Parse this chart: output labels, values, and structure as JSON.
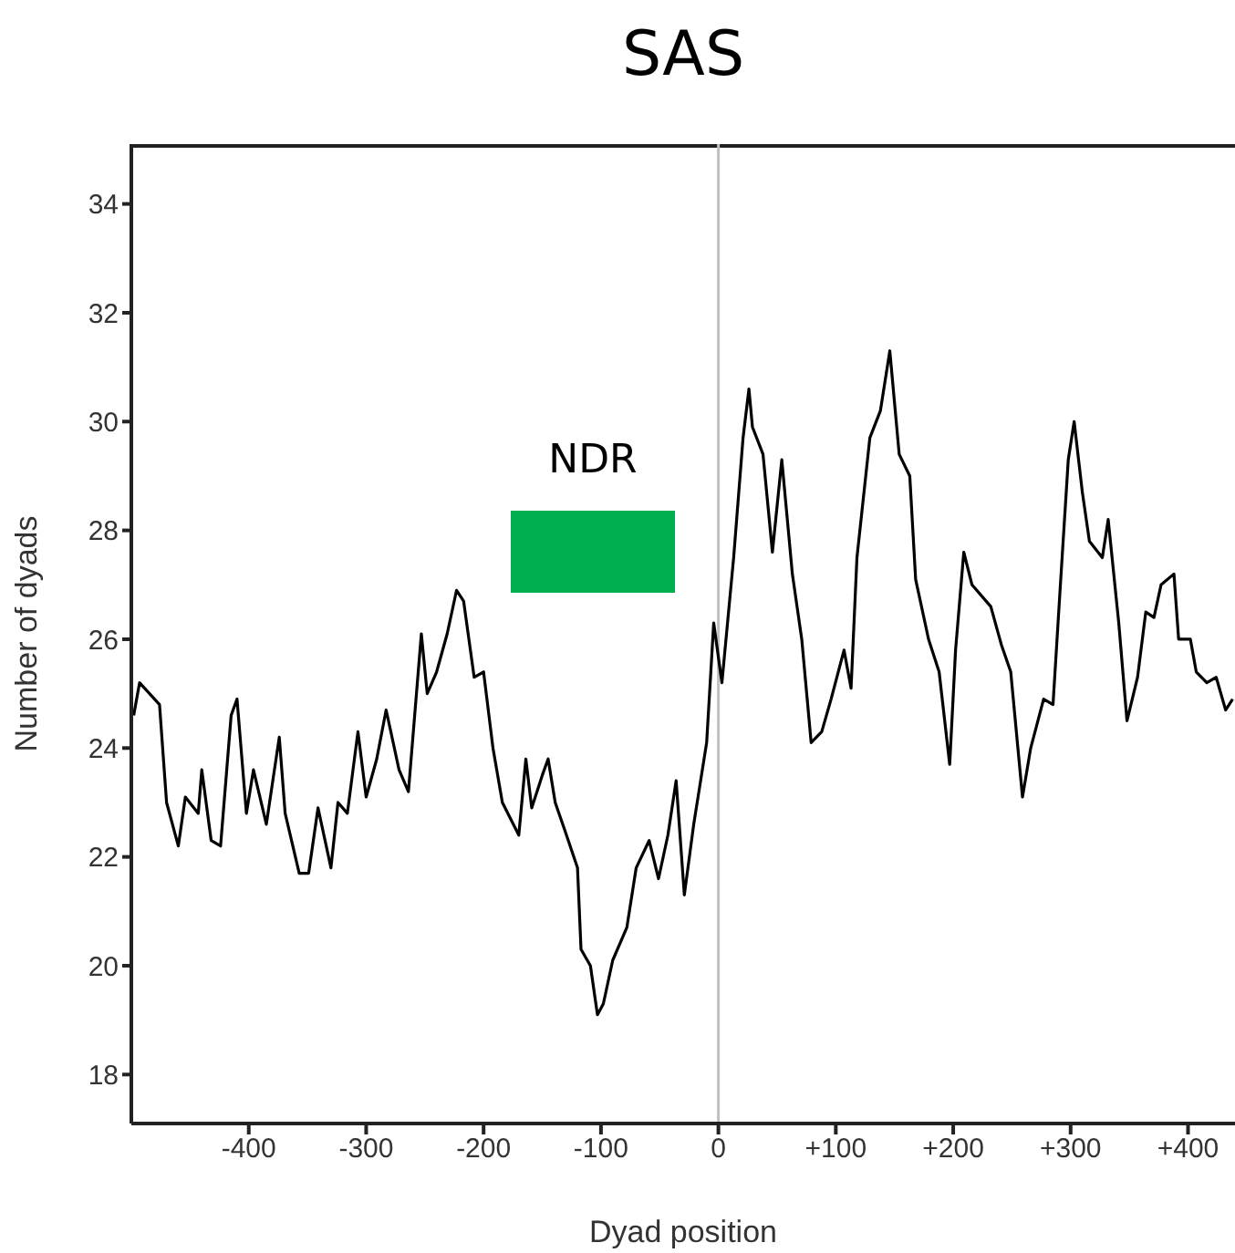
{
  "chart_data": {
    "type": "line",
    "title": "SAS",
    "xlabel": "Dyad position",
    "ylabel": "Number of dyads",
    "xlim": [
      -500,
      440
    ],
    "xticks": [
      -400,
      -300,
      -200,
      -100,
      0,
      {
        "value": 100,
        "label": "+100"
      },
      {
        "value": 200,
        "label": "+200"
      },
      {
        "value": 300,
        "label": "+300"
      },
      {
        "value": 400,
        "label": "+400"
      }
    ],
    "ylim": [
      17.1,
      35.1
    ],
    "yticks": [
      18,
      20,
      22,
      24,
      26,
      28,
      30,
      32,
      34
    ],
    "grid": false,
    "marker": "none",
    "line_style": "solid",
    "ref_lines": [
      {
        "axis": "x",
        "value": 0,
        "color": "#c0c0c0"
      }
    ],
    "annotations": [
      "NDR"
    ],
    "series": [
      {
        "color": "#000000",
        "x": [
          -498,
          -493,
          -476,
          -470,
          -460,
          -454,
          -443,
          -440,
          -432,
          -424,
          -415,
          -410,
          -402,
          -396,
          -385,
          -374,
          -369,
          -357,
          -349,
          -341,
          -330,
          -324,
          -316,
          -307,
          -300,
          -291,
          -283,
          -272,
          -264,
          -253,
          -248,
          -240,
          -231,
          -223,
          -217,
          -208,
          -200,
          -192,
          -184,
          -170,
          -164,
          -159,
          -150,
          -145,
          -139,
          -131,
          -120,
          -117,
          -109,
          -103,
          -98,
          -90,
          -78,
          -70,
          -59,
          -51,
          -43,
          -36,
          -29,
          -21,
          -10,
          -4,
          3,
          13,
          21,
          26,
          29,
          38,
          46,
          54,
          63,
          71,
          79,
          88,
          96,
          107,
          113,
          118,
          129,
          138,
          146,
          154,
          163,
          168,
          179,
          188,
          197,
          202,
          209,
          216,
          232,
          241,
          249,
          259,
          266,
          277,
          285,
          291,
          298,
          303,
          310,
          316,
          327,
          332,
          341,
          348,
          357,
          364,
          371,
          377,
          388,
          392,
          402,
          407,
          416,
          424,
          432,
          438
        ],
        "values": [
          24.6,
          25.2,
          24.8,
          23.0,
          22.2,
          23.1,
          22.8,
          23.6,
          22.3,
          22.2,
          24.6,
          24.9,
          22.8,
          23.6,
          22.6,
          24.2,
          22.8,
          21.7,
          21.7,
          22.9,
          21.8,
          23.0,
          22.8,
          24.3,
          23.1,
          23.8,
          24.7,
          23.6,
          23.2,
          26.1,
          25.0,
          25.4,
          26.1,
          26.9,
          26.7,
          25.3,
          25.4,
          24.0,
          23.0,
          22.4,
          23.8,
          22.9,
          23.5,
          23.8,
          23.0,
          22.5,
          21.8,
          20.3,
          20.0,
          19.1,
          19.3,
          20.1,
          20.7,
          21.8,
          22.3,
          21.6,
          22.4,
          23.4,
          21.3,
          22.6,
          24.1,
          26.3,
          25.2,
          27.5,
          29.7,
          30.6,
          29.9,
          29.4,
          27.6,
          29.3,
          27.2,
          26.0,
          24.1,
          24.3,
          24.9,
          25.8,
          25.1,
          27.5,
          29.7,
          30.2,
          31.3,
          29.4,
          29.0,
          27.1,
          26.0,
          25.4,
          23.7,
          25.8,
          27.6,
          27.0,
          26.6,
          25.9,
          25.4,
          23.1,
          24.0,
          24.9,
          24.8,
          26.9,
          29.3,
          30.0,
          28.7,
          27.8,
          27.5,
          28.2,
          26.3,
          24.5,
          25.3,
          26.5,
          26.4,
          27.0,
          27.2,
          26.0,
          26.0,
          25.4,
          25.2,
          25.3,
          24.7,
          24.9
        ]
      }
    ]
  }
}
